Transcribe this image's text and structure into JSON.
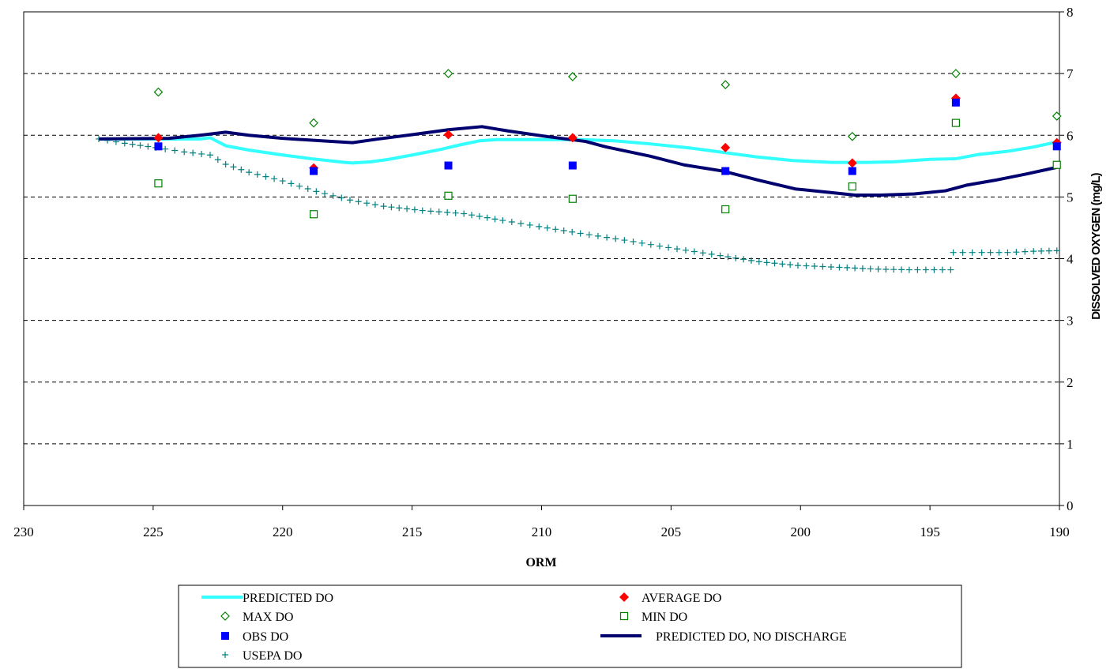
{
  "chart_data": {
    "type": "line",
    "title": "",
    "xlabel": "ORM",
    "ylabel": "DISSOLVED OXYGEN (mg/L)",
    "xlim": [
      230,
      190
    ],
    "ylim": [
      0,
      8
    ],
    "x_ticks": [
      "230",
      "225",
      "220",
      "215",
      "210",
      "205",
      "200",
      "195",
      "190"
    ],
    "y_ticks": [
      "0",
      "1",
      "2",
      "3",
      "4",
      "5",
      "6",
      "7",
      "8"
    ],
    "grid": "horizontal dashed",
    "y_axis_side": "right",
    "x_direction": "decreasing",
    "legend_position": "bottom",
    "series": [
      {
        "name": "PREDICTED DO",
        "kind": "line",
        "color": "#33FFFF",
        "x": [
          227.1,
          223.2,
          222.8,
          222.2,
          221.3,
          220.0,
          218.9,
          217.6,
          217.3,
          216.6,
          215.9,
          215.0,
          213.9,
          213.2,
          212.4,
          211.7,
          210.3,
          208.5,
          207.2,
          205.8,
          204.2,
          202.6,
          201.7,
          200.3,
          198.8,
          197.4,
          196.4,
          195.0,
          194.0,
          193.1,
          192.0,
          191.0,
          190.1
        ],
        "y": [
          5.94,
          5.94,
          5.96,
          5.83,
          5.76,
          5.68,
          5.62,
          5.56,
          5.55,
          5.57,
          5.61,
          5.68,
          5.77,
          5.84,
          5.91,
          5.93,
          5.93,
          5.93,
          5.91,
          5.86,
          5.79,
          5.7,
          5.65,
          5.59,
          5.56,
          5.56,
          5.57,
          5.61,
          5.62,
          5.69,
          5.74,
          5.81,
          5.89
        ]
      },
      {
        "name": "PREDICTED DO, NO DISCHARGE",
        "kind": "line",
        "color": "#00006E",
        "x": [
          227.1,
          224.4,
          223.2,
          222.2,
          221.3,
          220.0,
          218.5,
          217.3,
          216.3,
          215.0,
          213.6,
          212.3,
          211.3,
          209.8,
          208.3,
          207.5,
          205.8,
          204.5,
          203.0,
          201.6,
          200.2,
          198.8,
          197.9,
          196.9,
          195.6,
          194.4,
          193.6,
          192.5,
          191.3,
          190.1
        ],
        "y": [
          5.94,
          5.95,
          6.0,
          6.05,
          6.0,
          5.95,
          5.91,
          5.88,
          5.94,
          6.01,
          6.09,
          6.14,
          6.07,
          5.98,
          5.9,
          5.81,
          5.66,
          5.52,
          5.42,
          5.27,
          5.13,
          5.07,
          5.03,
          5.03,
          5.05,
          5.1,
          5.19,
          5.27,
          5.37,
          5.48
        ]
      },
      {
        "name": "USEPA DO",
        "kind": "markers-plus",
        "color": "#008080",
        "segments": [
          {
            "x": [
              227.1,
              226.1,
              224.9,
              223.8,
              222.8,
              222.2,
              221.3,
              220.0,
              218.7,
              217.4,
              216.1,
              214.6,
              213.0,
              211.5,
              210.1,
              208.5,
              206.8,
              205.1,
              203.1,
              201.6,
              200.1,
              198.5,
              197.0,
              195.8,
              194.2
            ],
            "y": [
              5.94,
              5.87,
              5.8,
              5.73,
              5.68,
              5.53,
              5.4,
              5.26,
              5.09,
              4.95,
              4.85,
              4.78,
              4.73,
              4.62,
              4.52,
              4.41,
              4.3,
              4.18,
              4.05,
              3.95,
              3.89,
              3.86,
              3.83,
              3.82,
              3.82
            ]
          },
          {
            "x": [
              194.1,
              193.0,
              192.0,
              191.0,
              190.1
            ],
            "y": [
              4.1,
              4.1,
              4.1,
              4.12,
              4.13
            ]
          }
        ]
      },
      {
        "name": "AVERAGE DO",
        "kind": "markers-diamond-filled",
        "color": "#FF0000",
        "x": [
          224.8,
          218.8,
          213.6,
          208.8,
          202.9,
          198.0,
          194.0,
          190.1
        ],
        "y": [
          5.96,
          5.47,
          6.01,
          5.96,
          5.8,
          5.55,
          6.6,
          5.88
        ]
      },
      {
        "name": "MAX DO",
        "kind": "markers-diamond-open",
        "color": "#008000",
        "x": [
          224.8,
          218.8,
          213.6,
          208.8,
          202.9,
          198.0,
          194.0,
          190.1
        ],
        "y": [
          6.7,
          6.2,
          7.0,
          6.95,
          6.82,
          5.98,
          7.0,
          6.31
        ]
      },
      {
        "name": "MIN DO",
        "kind": "markers-square-open",
        "color": "#008000",
        "x": [
          224.8,
          218.8,
          213.6,
          208.8,
          202.9,
          198.0,
          194.0,
          190.1
        ],
        "y": [
          5.22,
          4.72,
          5.02,
          4.97,
          4.8,
          5.17,
          6.2,
          5.52
        ]
      },
      {
        "name": "OBS DO",
        "kind": "markers-square-filled",
        "color": "#0000FF",
        "x": [
          224.8,
          218.8,
          213.6,
          208.8,
          202.9,
          198.0,
          194.0,
          190.1
        ],
        "y": [
          5.82,
          5.42,
          5.51,
          5.51,
          5.42,
          5.42,
          6.53,
          5.82
        ]
      }
    ],
    "legend": [
      {
        "label": "PREDICTED DO",
        "series": 0
      },
      {
        "label": "AVERAGE DO",
        "series": 3
      },
      {
        "label": "MAX DO",
        "series": 4
      },
      {
        "label": "MIN DO",
        "series": 5
      },
      {
        "label": "OBS DO",
        "series": 6
      },
      {
        "label": "PREDICTED DO, NO DISCHARGE",
        "series": 1
      },
      {
        "label": "USEPA DO",
        "series": 2
      }
    ]
  }
}
